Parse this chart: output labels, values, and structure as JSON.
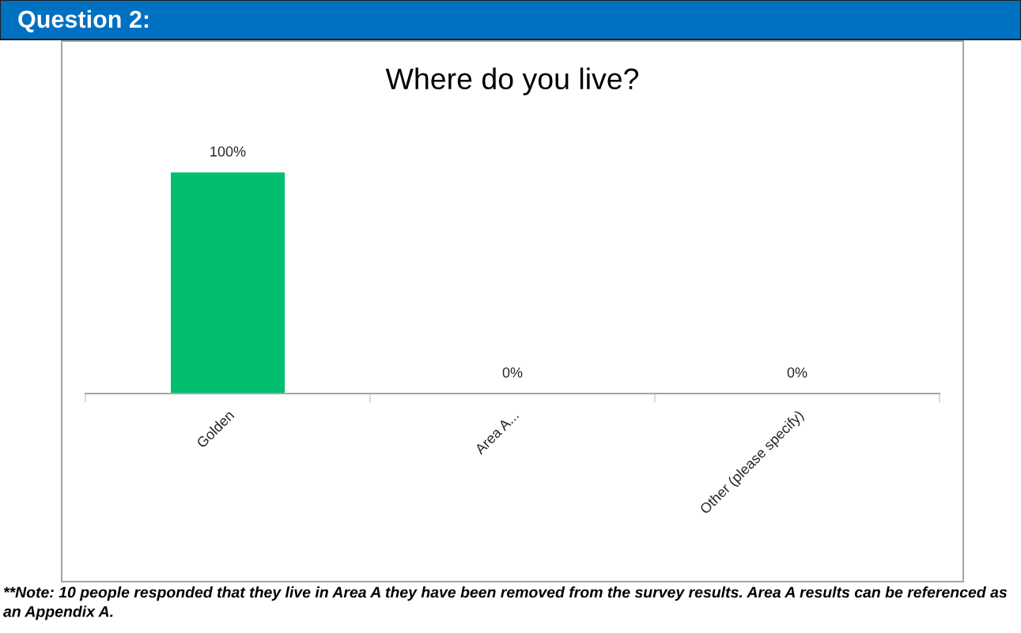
{
  "chart_data": {
    "type": "bar",
    "title": "Question 2:",
    "subtitle": "Where do you live?",
    "categories": [
      "Golden",
      "Area A...",
      "Other (please specify)"
    ],
    "values": [
      100,
      0,
      0
    ],
    "value_labels": [
      "100%",
      "0%",
      "0%"
    ],
    "color": "#02bf6f",
    "grid": false,
    "legend": false,
    "tick_labels": "x",
    "annotations": [
      "**Note: 10 people responded that they live in Area A they have been removed from the survey results. Area A results can be referenced as an Appendix A."
    ]
  }
}
